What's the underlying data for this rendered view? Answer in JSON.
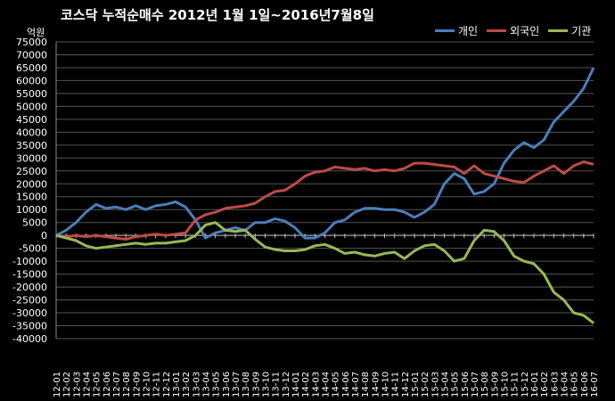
{
  "chart_data": {
    "type": "line",
    "title": "코스닥  누적순매수 2012년 1월 1일~2016년7월8일",
    "ylabel": "억원",
    "ylim": [
      -40000,
      75000
    ],
    "ytick_step": 5000,
    "grid": true,
    "legend_position": "top-right",
    "categories": [
      "12-01",
      "12-02",
      "12-03",
      "12-04",
      "12-05",
      "12-06",
      "12-07",
      "12-08",
      "12-09",
      "12-10",
      "12-11",
      "12-12",
      "13-01",
      "13-02",
      "13-03",
      "13-04",
      "13-05",
      "13-06",
      "13-07",
      "13-08",
      "13-09",
      "13-10",
      "13-11",
      "13-12",
      "14-01",
      "14-02",
      "14-03",
      "14-04",
      "14-05",
      "14-06",
      "14-07",
      "14-08",
      "14-09",
      "14-10",
      "14-11",
      "14-12",
      "15-01",
      "15-02",
      "15-03",
      "15-04",
      "15-05",
      "15-06",
      "15-07",
      "15-08",
      "15-09",
      "15-10",
      "15-11",
      "15-12",
      "16-01",
      "16-02",
      "16-03",
      "16-04",
      "16-05",
      "16-06",
      "16-07"
    ],
    "series": [
      {
        "name": "개인",
        "color": "#4a7ebb",
        "values": [
          0,
          2000,
          5000,
          9000,
          12000,
          10500,
          11000,
          10000,
          11500,
          10000,
          11500,
          12000,
          13000,
          11000,
          6000,
          -1000,
          1000,
          2000,
          3000,
          2000,
          5000,
          5000,
          6500,
          5500,
          3000,
          -1000,
          -1000,
          1000,
          5000,
          6000,
          9000,
          10500,
          10500,
          10000,
          10000,
          9000,
          7000,
          9000,
          12000,
          20000,
          24000,
          22000,
          16000,
          17000,
          20000,
          28000,
          33000,
          36000,
          34000,
          37000,
          44000,
          48000,
          52000,
          57000,
          65000
        ]
      },
      {
        "name": "외국인",
        "color": "#be4b48",
        "values": [
          0,
          -500,
          0,
          -500,
          0,
          -500,
          -1000,
          -1500,
          -500,
          0,
          500,
          0,
          500,
          1000,
          6000,
          8000,
          9000,
          10500,
          11000,
          11500,
          12500,
          15000,
          17000,
          17500,
          20000,
          23000,
          24500,
          25000,
          26500,
          26000,
          25500,
          26000,
          25000,
          25500,
          25000,
          26000,
          28000,
          28000,
          27500,
          27000,
          26500,
          24000,
          27000,
          24000,
          23000,
          22000,
          21000,
          20500,
          23000,
          25000,
          27000,
          24000,
          27000,
          28500,
          27500
        ]
      },
      {
        "name": "기관",
        "color": "#98b954",
        "values": [
          0,
          -1000,
          -2000,
          -4000,
          -5000,
          -4500,
          -4000,
          -3500,
          -3000,
          -3500,
          -3000,
          -3000,
          -2500,
          -2000,
          0,
          4000,
          5000,
          2000,
          1500,
          2000,
          -1500,
          -4500,
          -5500,
          -6000,
          -6000,
          -5500,
          -4000,
          -3500,
          -5000,
          -7000,
          -6500,
          -7500,
          -8000,
          -7000,
          -6500,
          -9000,
          -6000,
          -4000,
          -3500,
          -6000,
          -10000,
          -9000,
          -2000,
          2000,
          1500,
          -2000,
          -8000,
          -10000,
          -11000,
          -15000,
          -22000,
          -25000,
          -30000,
          -31000,
          -34000
        ]
      }
    ]
  }
}
